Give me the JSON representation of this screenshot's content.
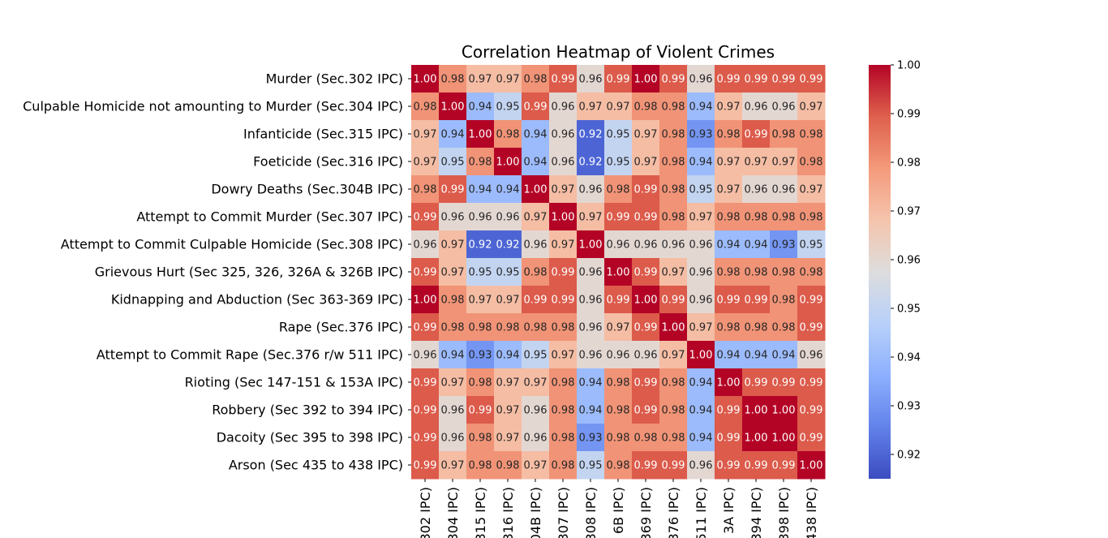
{
  "chart_data": {
    "type": "heatmap",
    "title": "Correlation Heatmap of Violent Crimes",
    "row_labels": [
      "Murder (Sec.302 IPC)",
      "Culpable Homicide not amounting to Murder (Sec.304 IPC)",
      "Infanticide (Sec.315 IPC)",
      "Foeticide (Sec.316 IPC)",
      "Dowry Deaths (Sec.304B IPC)",
      "Attempt to Commit Murder (Sec.307 IPC)",
      "Attempt to Commit Culpable Homicide (Sec.308 IPC)",
      "Grievous Hurt (Sec 325, 326, 326A & 326B IPC)",
      "Kidnapping and Abduction (Sec 363-369 IPC)",
      "Rape (Sec.376 IPC)",
      "Attempt to Commit Rape (Sec.376 r/w 511 IPC)",
      "Rioting (Sec 147-151 & 153A IPC)",
      "Robbery (Sec 392 to 394 IPC)",
      "Dacoity (Sec 395 to 398 IPC)",
      "Arson (Sec 435 to 438 IPC)"
    ],
    "col_labels": [
      "302 IPC)",
      "304 IPC)",
      "315 IPC)",
      "316 IPC)",
      "04B IPC)",
      "307 IPC)",
      "308 IPC)",
      "6B IPC)",
      "369 IPC)",
      "376 IPC)",
      "511 IPC)",
      "3A IPC)",
      "394 IPC)",
      "398 IPC)",
      "438 IPC)"
    ],
    "values": [
      [
        1.0,
        0.98,
        0.97,
        0.97,
        0.98,
        0.99,
        0.96,
        0.99,
        1.0,
        0.99,
        0.96,
        0.99,
        0.99,
        0.99,
        0.99
      ],
      [
        0.98,
        1.0,
        0.94,
        0.95,
        0.99,
        0.96,
        0.97,
        0.97,
        0.98,
        0.98,
        0.94,
        0.97,
        0.96,
        0.96,
        0.97
      ],
      [
        0.97,
        0.94,
        1.0,
        0.98,
        0.94,
        0.96,
        0.92,
        0.95,
        0.97,
        0.98,
        0.93,
        0.98,
        0.99,
        0.98,
        0.98
      ],
      [
        0.97,
        0.95,
        0.98,
        1.0,
        0.94,
        0.96,
        0.92,
        0.95,
        0.97,
        0.98,
        0.94,
        0.97,
        0.97,
        0.97,
        0.98
      ],
      [
        0.98,
        0.99,
        0.94,
        0.94,
        1.0,
        0.97,
        0.96,
        0.98,
        0.99,
        0.98,
        0.95,
        0.97,
        0.96,
        0.96,
        0.97
      ],
      [
        0.99,
        0.96,
        0.96,
        0.96,
        0.97,
        1.0,
        0.97,
        0.99,
        0.99,
        0.98,
        0.97,
        0.98,
        0.98,
        0.98,
        0.98
      ],
      [
        0.96,
        0.97,
        0.92,
        0.92,
        0.96,
        0.97,
        1.0,
        0.96,
        0.96,
        0.96,
        0.96,
        0.94,
        0.94,
        0.93,
        0.95
      ],
      [
        0.99,
        0.97,
        0.95,
        0.95,
        0.98,
        0.99,
        0.96,
        1.0,
        0.99,
        0.97,
        0.96,
        0.98,
        0.98,
        0.98,
        0.98
      ],
      [
        1.0,
        0.98,
        0.97,
        0.97,
        0.99,
        0.99,
        0.96,
        0.99,
        1.0,
        0.99,
        0.96,
        0.99,
        0.99,
        0.98,
        0.99
      ],
      [
        0.99,
        0.98,
        0.98,
        0.98,
        0.98,
        0.98,
        0.96,
        0.97,
        0.99,
        1.0,
        0.97,
        0.98,
        0.98,
        0.98,
        0.99
      ],
      [
        0.96,
        0.94,
        0.93,
        0.94,
        0.95,
        0.97,
        0.96,
        0.96,
        0.96,
        0.97,
        1.0,
        0.94,
        0.94,
        0.94,
        0.96
      ],
      [
        0.99,
        0.97,
        0.98,
        0.97,
        0.97,
        0.98,
        0.94,
        0.98,
        0.99,
        0.98,
        0.94,
        1.0,
        0.99,
        0.99,
        0.99
      ],
      [
        0.99,
        0.96,
        0.99,
        0.97,
        0.96,
        0.98,
        0.94,
        0.98,
        0.99,
        0.98,
        0.94,
        0.99,
        1.0,
        1.0,
        0.99
      ],
      [
        0.99,
        0.96,
        0.98,
        0.97,
        0.96,
        0.98,
        0.93,
        0.98,
        0.98,
        0.98,
        0.94,
        0.99,
        1.0,
        1.0,
        0.99
      ],
      [
        0.99,
        0.97,
        0.98,
        0.98,
        0.97,
        0.98,
        0.95,
        0.98,
        0.99,
        0.99,
        0.96,
        0.99,
        0.99,
        0.99,
        1.0
      ]
    ],
    "colormap": "coolwarm",
    "vmin": 0.915,
    "vmax": 1.0,
    "colorbar_ticks": [
      "1.00",
      "0.99",
      "0.98",
      "0.97",
      "0.96",
      "0.95",
      "0.94",
      "0.93",
      "0.92"
    ],
    "annotations": true,
    "annotation_format": "0.00"
  }
}
